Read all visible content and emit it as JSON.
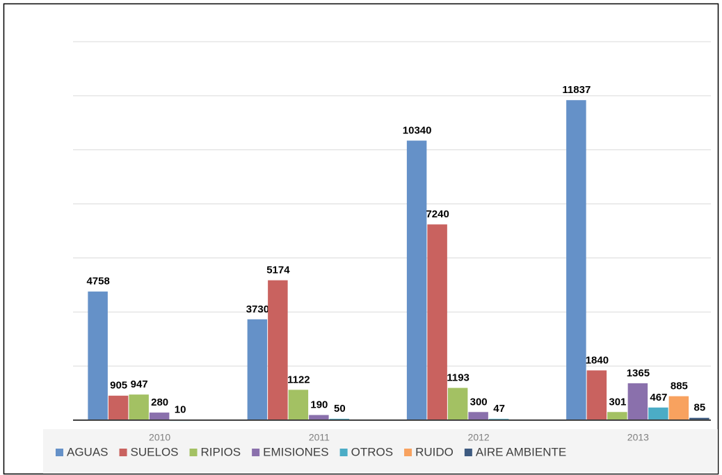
{
  "chart_data": {
    "type": "bar",
    "categories": [
      "2010",
      "2011",
      "2012",
      "2013"
    ],
    "series": [
      {
        "name": "AGUAS",
        "color": "#6591c8",
        "values": [
          4758,
          3730,
          10340,
          11837
        ]
      },
      {
        "name": "SUELOS",
        "color": "#c9625f",
        "values": [
          905,
          5174,
          7240,
          1840
        ]
      },
      {
        "name": "RIPIOS",
        "color": "#a3c163",
        "values": [
          947,
          1122,
          1193,
          301
        ]
      },
      {
        "name": "EMISIONES",
        "color": "#8a70ac",
        "values": [
          280,
          190,
          300,
          1365
        ]
      },
      {
        "name": "OTROS",
        "color": "#4bacc6",
        "values": [
          10,
          50,
          47,
          467
        ]
      },
      {
        "name": "RUIDO",
        "color": "#f8a25f",
        "values": [
          null,
          null,
          null,
          885
        ]
      },
      {
        "name": "AIRE AMBIENTE",
        "color": "#3d5a80",
        "values": [
          null,
          null,
          null,
          85
        ]
      }
    ],
    "ylim": [
      0,
      14000
    ],
    "yticks": [
      0,
      2000,
      4000,
      6000,
      8000,
      10000,
      12000,
      14000
    ],
    "grid": true
  }
}
